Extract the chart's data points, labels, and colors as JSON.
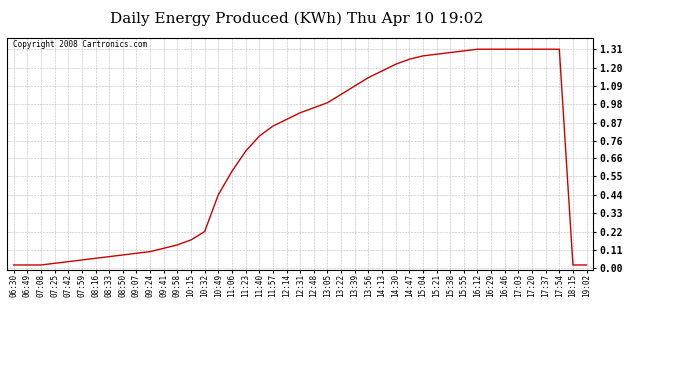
{
  "title": "Daily Energy Produced (KWh) Thu Apr 10 19:02",
  "copyright_text": "Copyright 2008 Cartronics.com",
  "line_color": "#cc0000",
  "bg_color": "#ffffff",
  "grid_color": "#bbbbbb",
  "border_color": "#000000",
  "y_ticks": [
    0.0,
    0.11,
    0.22,
    0.33,
    0.44,
    0.55,
    0.66,
    0.76,
    0.87,
    0.98,
    1.09,
    1.2,
    1.31
  ],
  "ylim": [
    -0.01,
    1.38
  ],
  "x_labels": [
    "06:30",
    "06:49",
    "07:08",
    "07:25",
    "07:42",
    "07:59",
    "08:16",
    "08:33",
    "08:50",
    "09:07",
    "09:24",
    "09:41",
    "09:58",
    "10:15",
    "10:32",
    "10:49",
    "11:06",
    "11:23",
    "11:40",
    "11:57",
    "12:14",
    "12:31",
    "12:48",
    "13:05",
    "13:22",
    "13:39",
    "13:56",
    "14:13",
    "14:30",
    "14:47",
    "15:04",
    "15:21",
    "15:38",
    "15:55",
    "16:12",
    "16:29",
    "16:46",
    "17:03",
    "17:20",
    "17:37",
    "17:54",
    "18:15",
    "19:02"
  ],
  "curve_y": [
    0.02,
    0.02,
    0.02,
    0.03,
    0.04,
    0.05,
    0.06,
    0.07,
    0.08,
    0.09,
    0.1,
    0.12,
    0.14,
    0.17,
    0.22,
    0.44,
    0.58,
    0.7,
    0.79,
    0.85,
    0.89,
    0.93,
    0.96,
    0.99,
    1.04,
    1.09,
    1.14,
    1.18,
    1.22,
    1.25,
    1.27,
    1.28,
    1.29,
    1.3,
    1.31,
    1.31,
    1.31,
    1.31,
    1.31,
    1.31,
    1.31,
    0.02,
    0.02
  ]
}
